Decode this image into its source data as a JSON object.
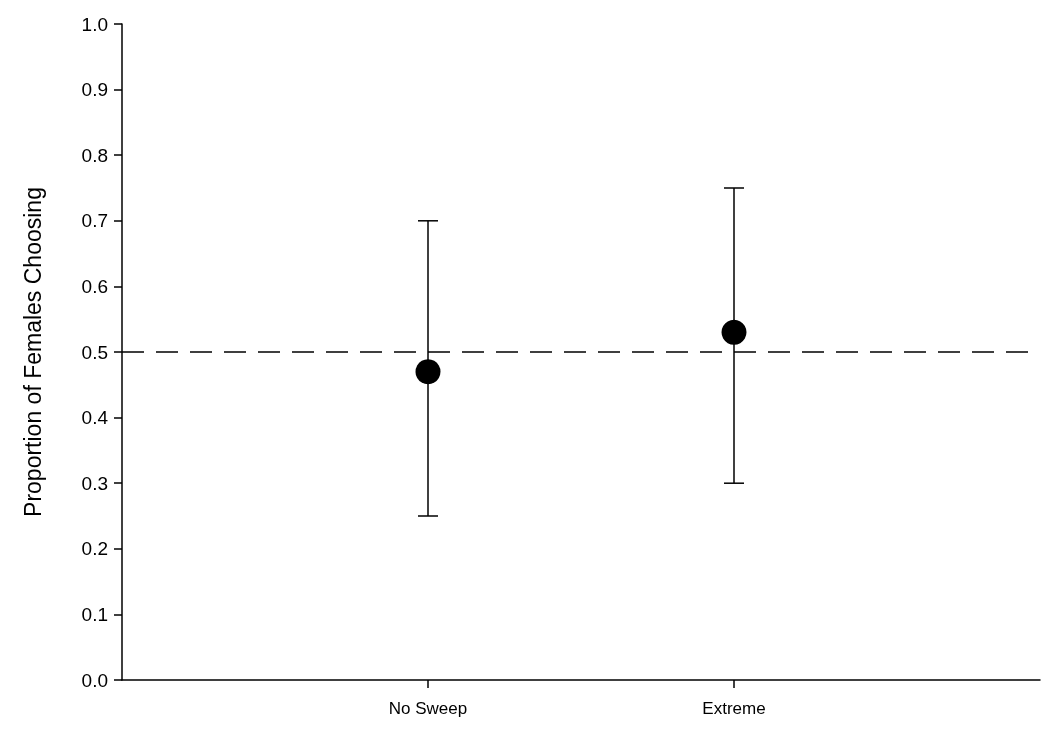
{
  "chart_data": {
    "type": "scatter",
    "ylabel": "Proportion of Females Choosing",
    "categories": [
      "No Sweep",
      "Extreme"
    ],
    "values": [
      0.47,
      0.53
    ],
    "errors": [
      [
        0.25,
        0.7
      ],
      [
        0.3,
        0.75
      ]
    ],
    "color": "#000000",
    "marker": "circle",
    "ylim": [
      0,
      1
    ],
    "yticks": [
      {
        "value": 0,
        "label": "0.0"
      },
      0.1,
      0.2,
      0.3,
      0.4,
      0.5,
      0.6,
      0.7,
      0.8,
      0.9,
      {
        "value": 1,
        "label": "1.0"
      }
    ],
    "ref_lines": [
      {
        "axis": "y",
        "value": 0.5,
        "line_style": "dashed",
        "color": "#000000"
      }
    ],
    "grid": false
  }
}
